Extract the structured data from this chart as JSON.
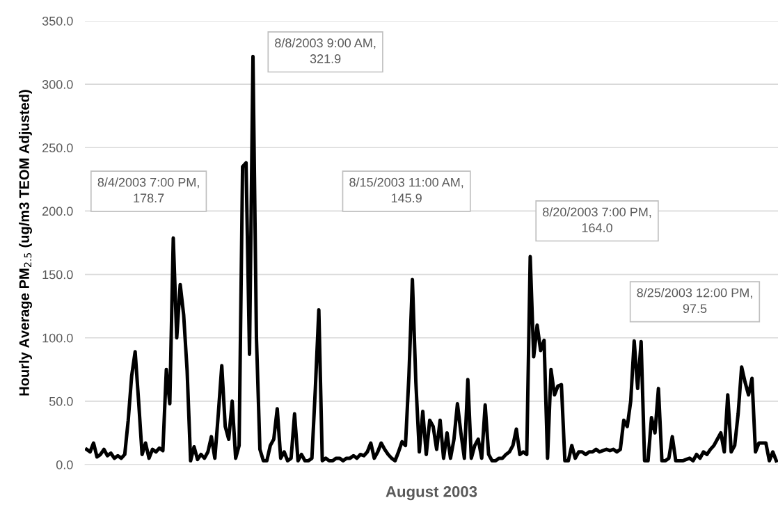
{
  "chart_data": {
    "type": "line",
    "xlabel": "August 2003",
    "ylabel": "Hourly Average PM$_{2.5}$ (ug/m3 TEOM Adjusted)",
    "categories": [
      null,
      null,
      null,
      null,
      null,
      null,
      null,
      null,
      null,
      null,
      null,
      null,
      null,
      null,
      null,
      null,
      null,
      null,
      null,
      null,
      null,
      null,
      null,
      null,
      null,
      null,
      null,
      null,
      null,
      null,
      null,
      null,
      null,
      null,
      null,
      null,
      null,
      null,
      null,
      null,
      null,
      null,
      null,
      null,
      null,
      null,
      null,
      null,
      null,
      null,
      null,
      null,
      null,
      null,
      null,
      null,
      null,
      null,
      null,
      null,
      null,
      null,
      null,
      null,
      null,
      null,
      null,
      null,
      null,
      null,
      null,
      null,
      null,
      null,
      null,
      null,
      null,
      null,
      null,
      null,
      null,
      null,
      null,
      null,
      null,
      null,
      null,
      null,
      null,
      null,
      null,
      null,
      null,
      null,
      null,
      null,
      null,
      null,
      null,
      null,
      null,
      null,
      null,
      null,
      null,
      null,
      null,
      null,
      null,
      null,
      null,
      null,
      null,
      null,
      null,
      null,
      null,
      null,
      null,
      null,
      null,
      null,
      null,
      null,
      null,
      null,
      null,
      null,
      null,
      null,
      null,
      null,
      null,
      null,
      null,
      null,
      null,
      null,
      null,
      null,
      null,
      null,
      null,
      null,
      null,
      null,
      null,
      null,
      null,
      null,
      null,
      null,
      null,
      null,
      null,
      null,
      null,
      null,
      null,
      null,
      null,
      null,
      null,
      null,
      null,
      null,
      null,
      null,
      null,
      null,
      null,
      null,
      null,
      null,
      null,
      null,
      null,
      null,
      null,
      null,
      null,
      null,
      null,
      null,
      null,
      null,
      null,
      null,
      null,
      null,
      null,
      null,
      null,
      null,
      null,
      null,
      null,
      null,
      null,
      null
    ],
    "series": [
      {
        "color": "#000000",
        "values": [
          12,
          10,
          17,
          6,
          8,
          12,
          7,
          9,
          5,
          7,
          5,
          8,
          35,
          70,
          89,
          50,
          8,
          17,
          5,
          12,
          10,
          13,
          11,
          75,
          48,
          178.7,
          100,
          142,
          118,
          74,
          3,
          14,
          4,
          8,
          5,
          10,
          22,
          5,
          40,
          78,
          30,
          20,
          50,
          5,
          15,
          235,
          238,
          87,
          321.9,
          100,
          12,
          3,
          3,
          15,
          20,
          44,
          5,
          10,
          3,
          5,
          40,
          3,
          8,
          3,
          3,
          5,
          60,
          122,
          3,
          5,
          3,
          3,
          5,
          5,
          3,
          5,
          5,
          7,
          5,
          8,
          7,
          10,
          17,
          5,
          10,
          17,
          12,
          8,
          5,
          3,
          10,
          18,
          15,
          70,
          145.9,
          65,
          10,
          42,
          8,
          35,
          30,
          12,
          35,
          5,
          25,
          5,
          20,
          48,
          25,
          5,
          67,
          5,
          15,
          20,
          5,
          47,
          8,
          3,
          3,
          5,
          5,
          8,
          10,
          15,
          28,
          8,
          10,
          8,
          164.0,
          85,
          110,
          90,
          98,
          5,
          75,
          55,
          62,
          63,
          3,
          3,
          15,
          5,
          10,
          10,
          8,
          10,
          10,
          12,
          10,
          11,
          12,
          11,
          12,
          10,
          12,
          35,
          30,
          50,
          97.5,
          60,
          97,
          3,
          3,
          37,
          25,
          60,
          3,
          3,
          5,
          22,
          3,
          3,
          3,
          4,
          5,
          3,
          8,
          5,
          10,
          8,
          12,
          15,
          20,
          25,
          10,
          55,
          10,
          15,
          40,
          77,
          65,
          55,
          68,
          10,
          17,
          17,
          17,
          3,
          10,
          3
        ]
      }
    ],
    "ylim": [
      0,
      350
    ],
    "yticks": [
      {
        "value": 0,
        "label": "0.0"
      },
      {
        "value": 50,
        "label": "50.0"
      },
      {
        "value": 100,
        "label": "100.0"
      },
      {
        "value": 150,
        "label": "150.0"
      },
      {
        "value": 200,
        "label": "200.0"
      },
      {
        "value": 250,
        "label": "250.0"
      },
      {
        "value": 300,
        "label": "300.0"
      },
      {
        "value": 350,
        "label": "350.0"
      }
    ],
    "grid": "y",
    "tick_labels": "y",
    "annotations": [
      "8/4/2003 7:00 PM,\n178.7",
      "8/8/2003 9:00 AM,\n321.9",
      "8/15/2003 11:00 AM,\n145.9",
      "8/20/2003 7:00 PM,\n164.0",
      "8/25/2003 12:00 PM,\n97.5"
    ]
  }
}
